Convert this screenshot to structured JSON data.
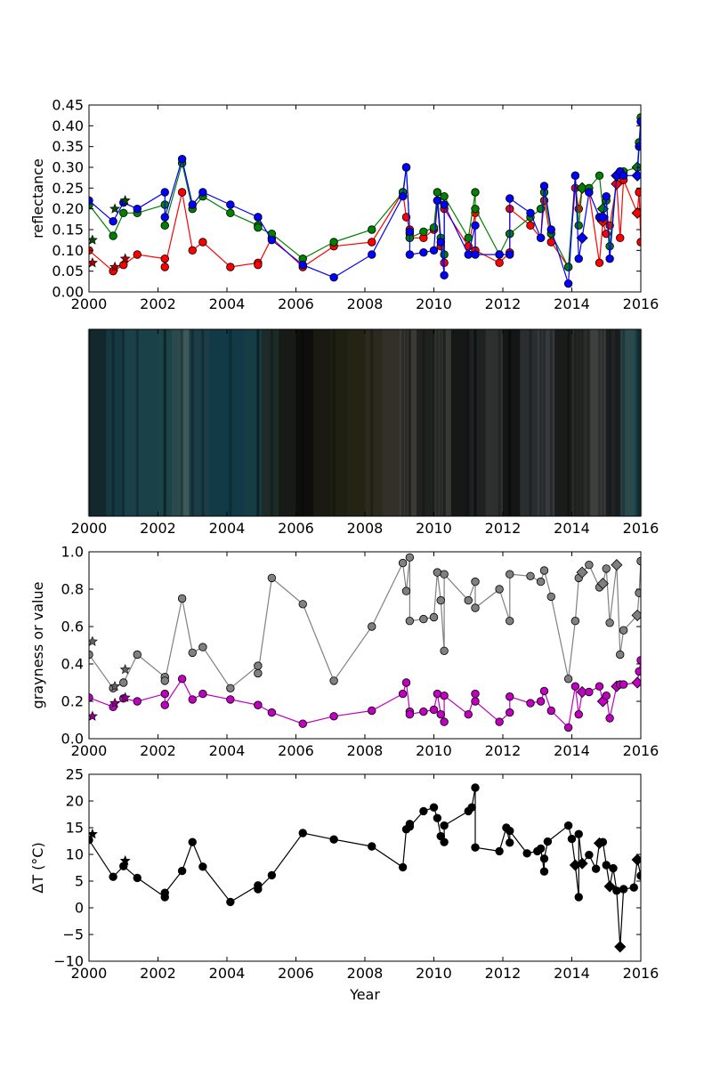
{
  "chart_data": [
    {
      "type": "line",
      "ylabel": "reflectance",
      "xlim": [
        2000,
        2016
      ],
      "ylim": [
        0,
        0.45
      ],
      "x_ticks": [
        "2000",
        "2002",
        "2004",
        "2006",
        "2008",
        "2010",
        "2012",
        "2014",
        "2016"
      ],
      "y_ticks": [
        "0.00",
        "0.05",
        "0.10",
        "0.15",
        "0.20",
        "0.25",
        "0.30",
        "0.35",
        "0.40",
        "0.45"
      ],
      "colors": {
        "red": "#ff0000",
        "green": "#008000",
        "blue": "#0000ff",
        "dark_red": "#aa0000"
      },
      "markers": [
        "star",
        "circle",
        "diamond"
      ],
      "series": [
        {
          "color": "#ff0000",
          "x": [
            2000.0,
            2000.7,
            2001.0,
            2001.4,
            2002.2,
            2002.2,
            2002.7,
            2003.0,
            2003.3,
            2004.1,
            2004.9,
            2004.9,
            2005.3,
            2006.2,
            2007.1,
            2008.2,
            2009.1,
            2009.2,
            2009.3,
            2009.3,
            2009.7,
            2010.0,
            2010.1,
            2010.2,
            2010.3,
            2010.3,
            2011.0,
            2011.2,
            2011.2,
            2011.9,
            2012.2,
            2012.2,
            2012.8,
            2013.1,
            2013.2,
            2013.4,
            2013.9,
            2014.1,
            2014.2,
            2014.3,
            2014.5,
            2014.8,
            2014.9,
            2015.0,
            2015.1,
            2015.3,
            2015.4,
            2015.5,
            2015.9,
            2015.95,
            2016.0
          ],
          "y": [
            0.1,
            0.05,
            0.065,
            0.09,
            0.08,
            0.06,
            0.24,
            0.1,
            0.12,
            0.06,
            0.07,
            0.065,
            0.13,
            0.06,
            0.11,
            0.12,
            0.24,
            0.18,
            0.15,
            0.13,
            0.13,
            0.15,
            0.22,
            0.11,
            0.07,
            0.2,
            0.11,
            0.19,
            0.1,
            0.07,
            0.095,
            0.2,
            0.16,
            0.13,
            0.22,
            0.12,
            0.06,
            0.25,
            0.2,
            0.25,
            0.24,
            0.07,
            0.17,
            0.14,
            0.16,
            0.26,
            0.13,
            0.27,
            0.19,
            0.24,
            0.12
          ]
        },
        {
          "color": "#008000",
          "x": [
            2000.0,
            2000.7,
            2001.0,
            2001.4,
            2002.2,
            2002.2,
            2002.7,
            2003.0,
            2003.3,
            2004.1,
            2004.9,
            2004.9,
            2005.3,
            2006.2,
            2007.1,
            2008.2,
            2009.1,
            2009.2,
            2009.3,
            2009.3,
            2009.7,
            2010.0,
            2010.1,
            2010.2,
            2010.3,
            2010.3,
            2011.0,
            2011.2,
            2011.2,
            2011.9,
            2012.2,
            2012.2,
            2012.8,
            2013.1,
            2013.2,
            2013.4,
            2013.9,
            2014.1,
            2014.2,
            2014.3,
            2014.5,
            2014.8,
            2014.9,
            2015.0,
            2015.1,
            2015.3,
            2015.4,
            2015.5,
            2015.9,
            2015.95,
            2016.0
          ],
          "y": [
            0.21,
            0.135,
            0.19,
            0.19,
            0.21,
            0.16,
            0.31,
            0.2,
            0.23,
            0.19,
            0.16,
            0.155,
            0.14,
            0.08,
            0.12,
            0.15,
            0.24,
            0.3,
            0.14,
            0.13,
            0.145,
            0.155,
            0.24,
            0.13,
            0.09,
            0.23,
            0.13,
            0.24,
            0.2,
            0.09,
            0.14,
            0.14,
            0.18,
            0.2,
            0.24,
            0.14,
            0.06,
            0.28,
            0.16,
            0.25,
            0.25,
            0.28,
            0.2,
            0.22,
            0.11,
            0.28,
            0.29,
            0.29,
            0.3,
            0.36,
            0.42
          ]
        },
        {
          "color": "#0000ff",
          "x": [
            2000.0,
            2000.7,
            2001.0,
            2001.4,
            2002.2,
            2002.2,
            2002.7,
            2003.0,
            2003.3,
            2004.1,
            2004.9,
            2004.9,
            2005.3,
            2006.2,
            2007.1,
            2008.2,
            2009.1,
            2009.2,
            2009.3,
            2009.3,
            2009.7,
            2010.0,
            2010.1,
            2010.2,
            2010.3,
            2010.3,
            2011.0,
            2011.2,
            2011.2,
            2011.9,
            2012.2,
            2012.2,
            2012.8,
            2013.1,
            2013.2,
            2013.4,
            2013.9,
            2014.1,
            2014.2,
            2014.3,
            2014.5,
            2014.8,
            2014.9,
            2015.0,
            2015.1,
            2015.3,
            2015.4,
            2015.5,
            2015.9,
            2015.95,
            2016.0
          ],
          "y": [
            0.22,
            0.17,
            0.215,
            0.2,
            0.24,
            0.18,
            0.32,
            0.21,
            0.24,
            0.21,
            0.18,
            0.18,
            0.125,
            0.065,
            0.035,
            0.09,
            0.23,
            0.3,
            0.145,
            0.09,
            0.095,
            0.1,
            0.22,
            0.12,
            0.04,
            0.21,
            0.09,
            0.16,
            0.09,
            0.09,
            0.09,
            0.225,
            0.19,
            0.13,
            0.255,
            0.15,
            0.02,
            0.28,
            0.08,
            0.13,
            0.24,
            0.18,
            0.18,
            0.23,
            0.08,
            0.28,
            0.29,
            0.28,
            0.28,
            0.35,
            0.41
          ]
        },
        {
          "color": "#aa0000",
          "marker": "star",
          "x": [
            2000.1,
            2000.75,
            2001.05
          ],
          "y": [
            0.07,
            0.06,
            0.08
          ]
        },
        {
          "color": "#004d00",
          "marker": "star",
          "x": [
            2000.1,
            2000.75,
            2001.05
          ],
          "y": [
            0.125,
            0.2,
            0.22
          ]
        }
      ]
    },
    {
      "type": "heatmap",
      "description_free": true,
      "xlim": [
        2000,
        2016
      ],
      "x_ticks": [
        "2000",
        "2002",
        "2004",
        "2006",
        "2008",
        "2010",
        "2012",
        "2014",
        "2016"
      ],
      "bands": [
        {
          "x": 2000.0,
          "color": "#12282c"
        },
        {
          "x": 2000.5,
          "color": "#163840"
        },
        {
          "x": 2001.0,
          "color": "#1a4048"
        },
        {
          "x": 2002.0,
          "color": "#1a4448"
        },
        {
          "x": 2002.4,
          "color": "#2c4a4c"
        },
        {
          "x": 2002.7,
          "color": "#3e5a5a"
        },
        {
          "x": 2002.9,
          "color": "#1b3d46"
        },
        {
          "x": 2003.5,
          "color": "#123a46"
        },
        {
          "x": 2004.5,
          "color": "#163c44"
        },
        {
          "x": 2005.0,
          "color": "#1c2a28"
        },
        {
          "x": 2005.5,
          "color": "#181a16"
        },
        {
          "x": 2006.0,
          "color": "#0e0e0c"
        },
        {
          "x": 2006.5,
          "color": "#1a1a12"
        },
        {
          "x": 2007.0,
          "color": "#1e2012"
        },
        {
          "x": 2007.5,
          "color": "#232414"
        },
        {
          "x": 2008.0,
          "color": "#2a2a1e"
        },
        {
          "x": 2008.5,
          "color": "#323028"
        },
        {
          "x": 2009.0,
          "color": "#3c3a34"
        },
        {
          "x": 2009.5,
          "color": "#202220"
        },
        {
          "x": 2010.0,
          "color": "#363836"
        },
        {
          "x": 2010.5,
          "color": "#161818"
        },
        {
          "x": 2011.0,
          "color": "#1e2222"
        },
        {
          "x": 2011.5,
          "color": "#2e3030"
        },
        {
          "x": 2012.0,
          "color": "#141616"
        },
        {
          "x": 2012.5,
          "color": "#2a2e30"
        },
        {
          "x": 2013.0,
          "color": "#363a3c"
        },
        {
          "x": 2013.5,
          "color": "#1a1c1c"
        },
        {
          "x": 2014.0,
          "color": "#2a2c2a"
        },
        {
          "x": 2014.5,
          "color": "#3c403e"
        },
        {
          "x": 2015.0,
          "color": "#202424"
        },
        {
          "x": 2015.4,
          "color": "#2c4a4c"
        },
        {
          "x": 2015.8,
          "color": "#1e4850"
        }
      ]
    },
    {
      "type": "line",
      "ylabel": "grayness or value",
      "xlim": [
        2000,
        2016
      ],
      "ylim": [
        0,
        1.0
      ],
      "x_ticks": [
        "2000",
        "2002",
        "2004",
        "2006",
        "2008",
        "2010",
        "2012",
        "2014",
        "2016"
      ],
      "y_ticks": [
        "0.0",
        "0.2",
        "0.4",
        "0.6",
        "0.8",
        "1.0"
      ],
      "series": [
        {
          "color": "#808080",
          "x": [
            2000.0,
            2000.7,
            2001.0,
            2001.4,
            2002.2,
            2002.2,
            2002.7,
            2003.0,
            2003.3,
            2004.1,
            2004.9,
            2004.9,
            2005.3,
            2006.2,
            2007.1,
            2008.2,
            2009.1,
            2009.2,
            2009.3,
            2009.3,
            2009.7,
            2010.0,
            2010.1,
            2010.2,
            2010.3,
            2010.3,
            2011.0,
            2011.2,
            2011.2,
            2011.9,
            2012.2,
            2012.2,
            2012.8,
            2013.1,
            2013.2,
            2013.4,
            2013.9,
            2014.1,
            2014.2,
            2014.3,
            2014.5,
            2014.8,
            2014.9,
            2015.0,
            2015.1,
            2015.3,
            2015.4,
            2015.5,
            2015.9,
            2015.95,
            2016.0
          ],
          "y": [
            0.45,
            0.27,
            0.3,
            0.45,
            0.33,
            0.31,
            0.75,
            0.46,
            0.49,
            0.27,
            0.39,
            0.35,
            0.86,
            0.72,
            0.31,
            0.6,
            0.94,
            0.79,
            0.97,
            0.63,
            0.64,
            0.65,
            0.89,
            0.74,
            0.47,
            0.88,
            0.74,
            0.84,
            0.7,
            0.8,
            0.63,
            0.88,
            0.87,
            0.84,
            0.9,
            0.76,
            0.32,
            0.63,
            0.86,
            0.89,
            0.93,
            0.81,
            0.83,
            0.91,
            0.62,
            0.93,
            0.45,
            0.58,
            0.66,
            0.78,
            0.95
          ]
        },
        {
          "color": "#bf00bf",
          "x": [
            2000.0,
            2000.7,
            2001.0,
            2001.4,
            2002.2,
            2002.2,
            2002.7,
            2003.0,
            2003.3,
            2004.1,
            2004.9,
            2004.9,
            2005.3,
            2006.2,
            2007.1,
            2008.2,
            2009.1,
            2009.2,
            2009.3,
            2009.3,
            2009.7,
            2010.0,
            2010.1,
            2010.2,
            2010.3,
            2010.3,
            2011.0,
            2011.2,
            2011.2,
            2011.9,
            2012.2,
            2012.2,
            2012.8,
            2013.1,
            2013.2,
            2013.4,
            2013.9,
            2014.1,
            2014.2,
            2014.3,
            2014.5,
            2014.8,
            2014.9,
            2015.0,
            2015.1,
            2015.3,
            2015.4,
            2015.5,
            2015.9,
            2015.95,
            2016.0
          ],
          "y": [
            0.22,
            0.17,
            0.215,
            0.2,
            0.24,
            0.18,
            0.32,
            0.21,
            0.24,
            0.21,
            0.18,
            0.18,
            0.14,
            0.08,
            0.12,
            0.15,
            0.24,
            0.3,
            0.145,
            0.13,
            0.145,
            0.155,
            0.24,
            0.13,
            0.09,
            0.23,
            0.13,
            0.24,
            0.2,
            0.09,
            0.14,
            0.225,
            0.19,
            0.2,
            0.255,
            0.15,
            0.06,
            0.28,
            0.13,
            0.25,
            0.25,
            0.28,
            0.2,
            0.23,
            0.11,
            0.28,
            0.29,
            0.29,
            0.3,
            0.36,
            0.42
          ]
        },
        {
          "color": "#606060",
          "marker": "star",
          "x": [
            2000.1,
            2000.75,
            2001.05
          ],
          "y": [
            0.52,
            0.28,
            0.37
          ]
        },
        {
          "color": "#8a008a",
          "marker": "star",
          "x": [
            2000.1,
            2000.75,
            2001.05
          ],
          "y": [
            0.12,
            0.19,
            0.22
          ]
        }
      ]
    },
    {
      "type": "line",
      "xlabel": "Year",
      "ylabel": "ΔT (°C)",
      "xlim": [
        2000,
        2016
      ],
      "ylim": [
        -10,
        25
      ],
      "x_ticks": [
        "2000",
        "2002",
        "2004",
        "2006",
        "2008",
        "2010",
        "2012",
        "2014",
        "2016"
      ],
      "y_ticks": [
        "−10",
        "−5",
        "0",
        "5",
        "10",
        "15",
        "20",
        "25"
      ],
      "series": [
        {
          "color": "#000000",
          "x": [
            2000.0,
            2000.7,
            2001.0,
            2001.4,
            2002.2,
            2002.2,
            2002.7,
            2003.0,
            2003.3,
            2004.1,
            2004.9,
            2004.9,
            2005.3,
            2006.2,
            2007.1,
            2008.2,
            2009.1,
            2009.2,
            2009.3,
            2009.3,
            2009.7,
            2010.0,
            2010.1,
            2010.2,
            2010.3,
            2010.3,
            2011.0,
            2011.1,
            2011.2,
            2011.2,
            2011.9,
            2012.1,
            2012.2,
            2012.2,
            2012.7,
            2013.0,
            2013.1,
            2013.2,
            2013.2,
            2013.3,
            2013.9,
            2014.0,
            2014.1,
            2014.2,
            2014.2,
            2014.3,
            2014.5,
            2014.7,
            2014.8,
            2014.9,
            2015.0,
            2015.1,
            2015.2,
            2015.3,
            2015.4,
            2015.5,
            2015.8,
            2015.9,
            2016.0
          ],
          "y": [
            12.7,
            5.8,
            7.8,
            5.6,
            2.0,
            2.8,
            6.9,
            12.3,
            7.7,
            1.1,
            4.2,
            3.5,
            6.1,
            14.0,
            12.8,
            11.5,
            7.6,
            14.7,
            15.7,
            15.2,
            18.1,
            18.8,
            16.8,
            13.4,
            12.3,
            15.4,
            18.1,
            18.8,
            22.5,
            11.3,
            10.6,
            15.0,
            12.2,
            14.4,
            10.2,
            10.6,
            11.1,
            6.8,
            9.2,
            12.4,
            15.4,
            12.9,
            8.0,
            2.0,
            13.8,
            8.3,
            9.9,
            7.3,
            12.1,
            12.3,
            8.0,
            4.0,
            7.4,
            3.2,
            -7.3,
            3.5,
            3.8,
            9.0,
            6.0
          ]
        },
        {
          "color": "#000000",
          "marker": "star",
          "x": [
            2000.1,
            2001.05
          ],
          "y": [
            13.8,
            8.8
          ]
        }
      ]
    }
  ]
}
